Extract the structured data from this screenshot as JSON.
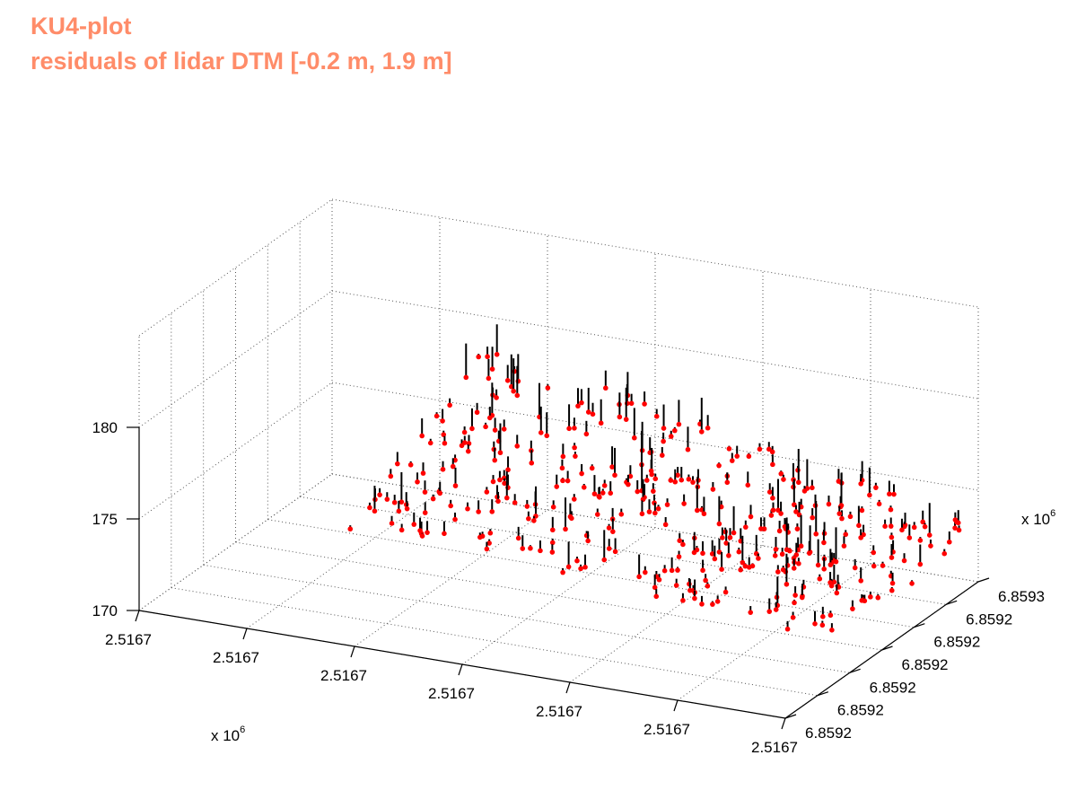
{
  "chart_data": {
    "type": "scatter",
    "projection": "3d",
    "title_lines": [
      "KU4-plot",
      "residuals of lidar DTM [-0.2 m, 1.9 m]"
    ],
    "title_color": "#ff8c69",
    "marker_color": "#ff0000",
    "stem_color": "#000000",
    "grid": true,
    "x_axis": {
      "ticks": [
        "2.5167",
        "2.5167",
        "2.5167",
        "2.5167",
        "2.5167",
        "2.5167",
        "2.5167"
      ],
      "multiplier_base": "x 10",
      "multiplier_exp": "6"
    },
    "y_axis": {
      "ticks": [
        "6.8592",
        "6.8592",
        "6.8592",
        "6.8592",
        "6.8592",
        "6.8592",
        "6.8593"
      ],
      "multiplier_base": "x 10",
      "multiplier_exp": "6"
    },
    "z_axis": {
      "ticks": [
        "170",
        "175",
        "180"
      ],
      "zlim": [
        170,
        185
      ]
    },
    "points": {
      "description_free": true,
      "count": 420,
      "residual_range_m": [
        -0.2,
        1.9
      ]
    }
  }
}
